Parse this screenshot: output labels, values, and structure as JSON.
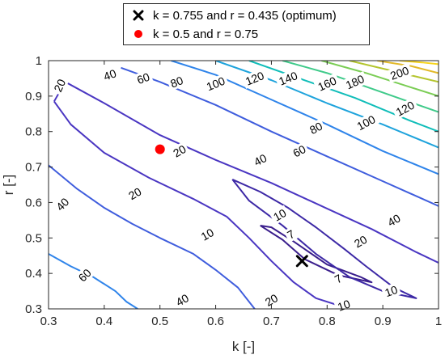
{
  "chart_data": {
    "type": "contour",
    "xlabel": "k [-]",
    "ylabel": "r [-]",
    "xlim": [
      0.3,
      1.0
    ],
    "ylim": [
      0.3,
      1.0
    ],
    "x_ticks": [
      "0.3",
      "0.4",
      "0.5",
      "0.6",
      "0.7",
      "0.8",
      "0.9",
      "1"
    ],
    "y_ticks": [
      "0.3",
      "0.4",
      "0.5",
      "0.6",
      "0.7",
      "0.8",
      "0.9",
      "1"
    ],
    "grid": false,
    "legend_position": "top-outside",
    "contour_levels": [
      7,
      10,
      20,
      40,
      60,
      80,
      100,
      120,
      140,
      160,
      180,
      200
    ],
    "level_colors": {
      "7": "#3a1e8c",
      "10": "#3d29a6",
      "20": "#4a36c2",
      "40": "#3f5ddd",
      "60": "#2f84ea",
      "80": "#1ea3dc",
      "100": "#10bdb9",
      "120": "#3fca8a",
      "140": "#7bcd55",
      "160": "#b4c52e",
      "180": "#e2b929",
      "200": "#f6d41c"
    },
    "contours": [
      {
        "level": 7,
        "points": [
          [
            0.68,
            0.535
          ],
          [
            0.72,
            0.495
          ],
          [
            0.76,
            0.44
          ],
          [
            0.82,
            0.395
          ],
          [
            0.88,
            0.375
          ],
          [
            0.86,
            0.39
          ],
          [
            0.8,
            0.425
          ],
          [
            0.74,
            0.49
          ],
          [
            0.7,
            0.53
          ],
          [
            0.68,
            0.535
          ]
        ]
      },
      {
        "level": 10,
        "points": [
          [
            0.63,
            0.665
          ],
          [
            0.66,
            0.605
          ],
          [
            0.72,
            0.535
          ],
          [
            0.78,
            0.455
          ],
          [
            0.84,
            0.39
          ],
          [
            0.9,
            0.35
          ],
          [
            0.96,
            0.33
          ],
          [
            0.92,
            0.36
          ],
          [
            0.87,
            0.42
          ],
          [
            0.83,
            0.47
          ],
          [
            0.78,
            0.53
          ],
          [
            0.73,
            0.585
          ],
          [
            0.68,
            0.63
          ],
          [
            0.63,
            0.665
          ]
        ]
      },
      {
        "level": 20,
        "points": [
          [
            0.31,
            0.885
          ],
          [
            0.33,
            0.94
          ],
          [
            0.4,
            0.88
          ],
          [
            0.5,
            0.79
          ],
          [
            0.6,
            0.72
          ],
          [
            0.7,
            0.655
          ],
          [
            0.79,
            0.59
          ],
          [
            0.88,
            0.525
          ],
          [
            0.96,
            0.46
          ],
          [
            1.0,
            0.43
          ]
        ]
      },
      {
        "level": 20,
        "points": [
          [
            0.31,
            0.885
          ],
          [
            0.34,
            0.82
          ],
          [
            0.4,
            0.74
          ],
          [
            0.48,
            0.67
          ],
          [
            0.56,
            0.61
          ],
          [
            0.62,
            0.56
          ],
          [
            0.66,
            0.5
          ],
          [
            0.7,
            0.435
          ],
          [
            0.74,
            0.375
          ],
          [
            0.78,
            0.33
          ],
          [
            0.84,
            0.3
          ]
        ]
      },
      {
        "level": 40,
        "points": [
          [
            0.43,
            0.98
          ],
          [
            0.5,
            0.94
          ],
          [
            0.6,
            0.875
          ],
          [
            0.7,
            0.8
          ],
          [
            0.8,
            0.73
          ],
          [
            0.9,
            0.66
          ],
          [
            1.0,
            0.59
          ]
        ]
      },
      {
        "level": 40,
        "points": [
          [
            0.3,
            0.705
          ],
          [
            0.35,
            0.64
          ],
          [
            0.4,
            0.585
          ],
          [
            0.45,
            0.54
          ],
          [
            0.5,
            0.5
          ],
          [
            0.56,
            0.455
          ],
          [
            0.6,
            0.41
          ],
          [
            0.64,
            0.36
          ],
          [
            0.67,
            0.3
          ]
        ]
      },
      {
        "level": 60,
        "points": [
          [
            0.52,
            1.0
          ],
          [
            0.6,
            0.96
          ],
          [
            0.7,
            0.89
          ],
          [
            0.8,
            0.82
          ],
          [
            0.9,
            0.745
          ],
          [
            1.0,
            0.68
          ]
        ]
      },
      {
        "level": 60,
        "points": [
          [
            0.3,
            0.455
          ],
          [
            0.34,
            0.42
          ],
          [
            0.38,
            0.39
          ],
          [
            0.42,
            0.35
          ],
          [
            0.44,
            0.32
          ],
          [
            0.46,
            0.3
          ]
        ]
      },
      {
        "level": 80,
        "points": [
          [
            0.6,
            1.0
          ],
          [
            0.7,
            0.945
          ],
          [
            0.8,
            0.88
          ],
          [
            0.9,
            0.82
          ],
          [
            1.0,
            0.755
          ]
        ]
      },
      {
        "level": 100,
        "points": [
          [
            0.66,
            1.0
          ],
          [
            0.75,
            0.95
          ],
          [
            0.85,
            0.895
          ],
          [
            0.95,
            0.83
          ],
          [
            1.0,
            0.8
          ]
        ]
      },
      {
        "level": 120,
        "points": [
          [
            0.72,
            1.0
          ],
          [
            0.8,
            0.965
          ],
          [
            0.9,
            0.91
          ],
          [
            1.0,
            0.855
          ]
        ]
      },
      {
        "level": 140,
        "points": [
          [
            0.79,
            1.0
          ],
          [
            0.87,
            0.965
          ],
          [
            0.95,
            0.925
          ],
          [
            1.0,
            0.9
          ]
        ]
      },
      {
        "level": 160,
        "points": [
          [
            0.84,
            1.0
          ],
          [
            0.92,
            0.97
          ],
          [
            1.0,
            0.94
          ]
        ]
      },
      {
        "level": 180,
        "points": [
          [
            0.89,
            1.0
          ],
          [
            0.95,
            0.985
          ],
          [
            1.0,
            0.965
          ]
        ]
      },
      {
        "level": 200,
        "points": [
          [
            0.93,
            1.0
          ],
          [
            0.97,
            0.995
          ],
          [
            1.0,
            0.99
          ]
        ]
      }
    ],
    "contour_labels": [
      {
        "text": "20",
        "x": 0.32,
        "y": 0.93,
        "rotate": -65
      },
      {
        "text": "40",
        "x": 0.41,
        "y": 0.96,
        "rotate": -20
      },
      {
        "text": "60",
        "x": 0.47,
        "y": 0.95,
        "rotate": -20
      },
      {
        "text": "80",
        "x": 0.53,
        "y": 0.94,
        "rotate": -22
      },
      {
        "text": "100",
        "x": 0.6,
        "y": 0.935,
        "rotate": -22
      },
      {
        "text": "120",
        "x": 0.67,
        "y": 0.95,
        "rotate": -22
      },
      {
        "text": "140",
        "x": 0.73,
        "y": 0.95,
        "rotate": -22
      },
      {
        "text": "160",
        "x": 0.8,
        "y": 0.935,
        "rotate": -24
      },
      {
        "text": "180",
        "x": 0.85,
        "y": 0.94,
        "rotate": -24
      },
      {
        "text": "200",
        "x": 0.93,
        "y": 0.965,
        "rotate": -20
      },
      {
        "text": "120",
        "x": 0.94,
        "y": 0.865,
        "rotate": -28
      },
      {
        "text": "100",
        "x": 0.87,
        "y": 0.825,
        "rotate": -28
      },
      {
        "text": "80",
        "x": 0.78,
        "y": 0.81,
        "rotate": -28
      },
      {
        "text": "60",
        "x": 0.75,
        "y": 0.745,
        "rotate": -28
      },
      {
        "text": "40",
        "x": 0.68,
        "y": 0.72,
        "rotate": -28
      },
      {
        "text": "20",
        "x": 0.535,
        "y": 0.745,
        "rotate": -30
      },
      {
        "text": "20",
        "x": 0.455,
        "y": 0.625,
        "rotate": -30
      },
      {
        "text": "10",
        "x": 0.585,
        "y": 0.51,
        "rotate": -30
      },
      {
        "text": "10",
        "x": 0.715,
        "y": 0.565,
        "rotate": -30
      },
      {
        "text": "7",
        "x": 0.735,
        "y": 0.51,
        "rotate": -30
      },
      {
        "text": "7",
        "x": 0.82,
        "y": 0.385,
        "rotate": -30
      },
      {
        "text": "20",
        "x": 0.86,
        "y": 0.49,
        "rotate": -30
      },
      {
        "text": "40",
        "x": 0.92,
        "y": 0.55,
        "rotate": -30
      },
      {
        "text": "10",
        "x": 0.915,
        "y": 0.35,
        "rotate": -20
      },
      {
        "text": "20",
        "x": 0.7,
        "y": 0.325,
        "rotate": -30
      },
      {
        "text": "10",
        "x": 0.83,
        "y": 0.31,
        "rotate": -20
      },
      {
        "text": "40",
        "x": 0.54,
        "y": 0.325,
        "rotate": -30
      },
      {
        "text": "40",
        "x": 0.325,
        "y": 0.595,
        "rotate": -45
      },
      {
        "text": "60",
        "x": 0.365,
        "y": 0.395,
        "rotate": -45
      }
    ],
    "points": [
      {
        "name": "k = 0.755 and r = 0.435 (optimum)",
        "k": 0.755,
        "r": 0.435,
        "marker": "x",
        "color": "#000000"
      },
      {
        "name": "k = 0.5 and r = 0.75",
        "k": 0.5,
        "r": 0.75,
        "marker": "o",
        "color": "#ff0000"
      }
    ]
  },
  "legend": {
    "items": [
      {
        "label": "k = 0.755 and r = 0.435 (optimum)",
        "marker": "x",
        "color": "#000000"
      },
      {
        "label": "k = 0.5 and r = 0.75",
        "marker": "o",
        "color": "#ff0000"
      }
    ]
  }
}
